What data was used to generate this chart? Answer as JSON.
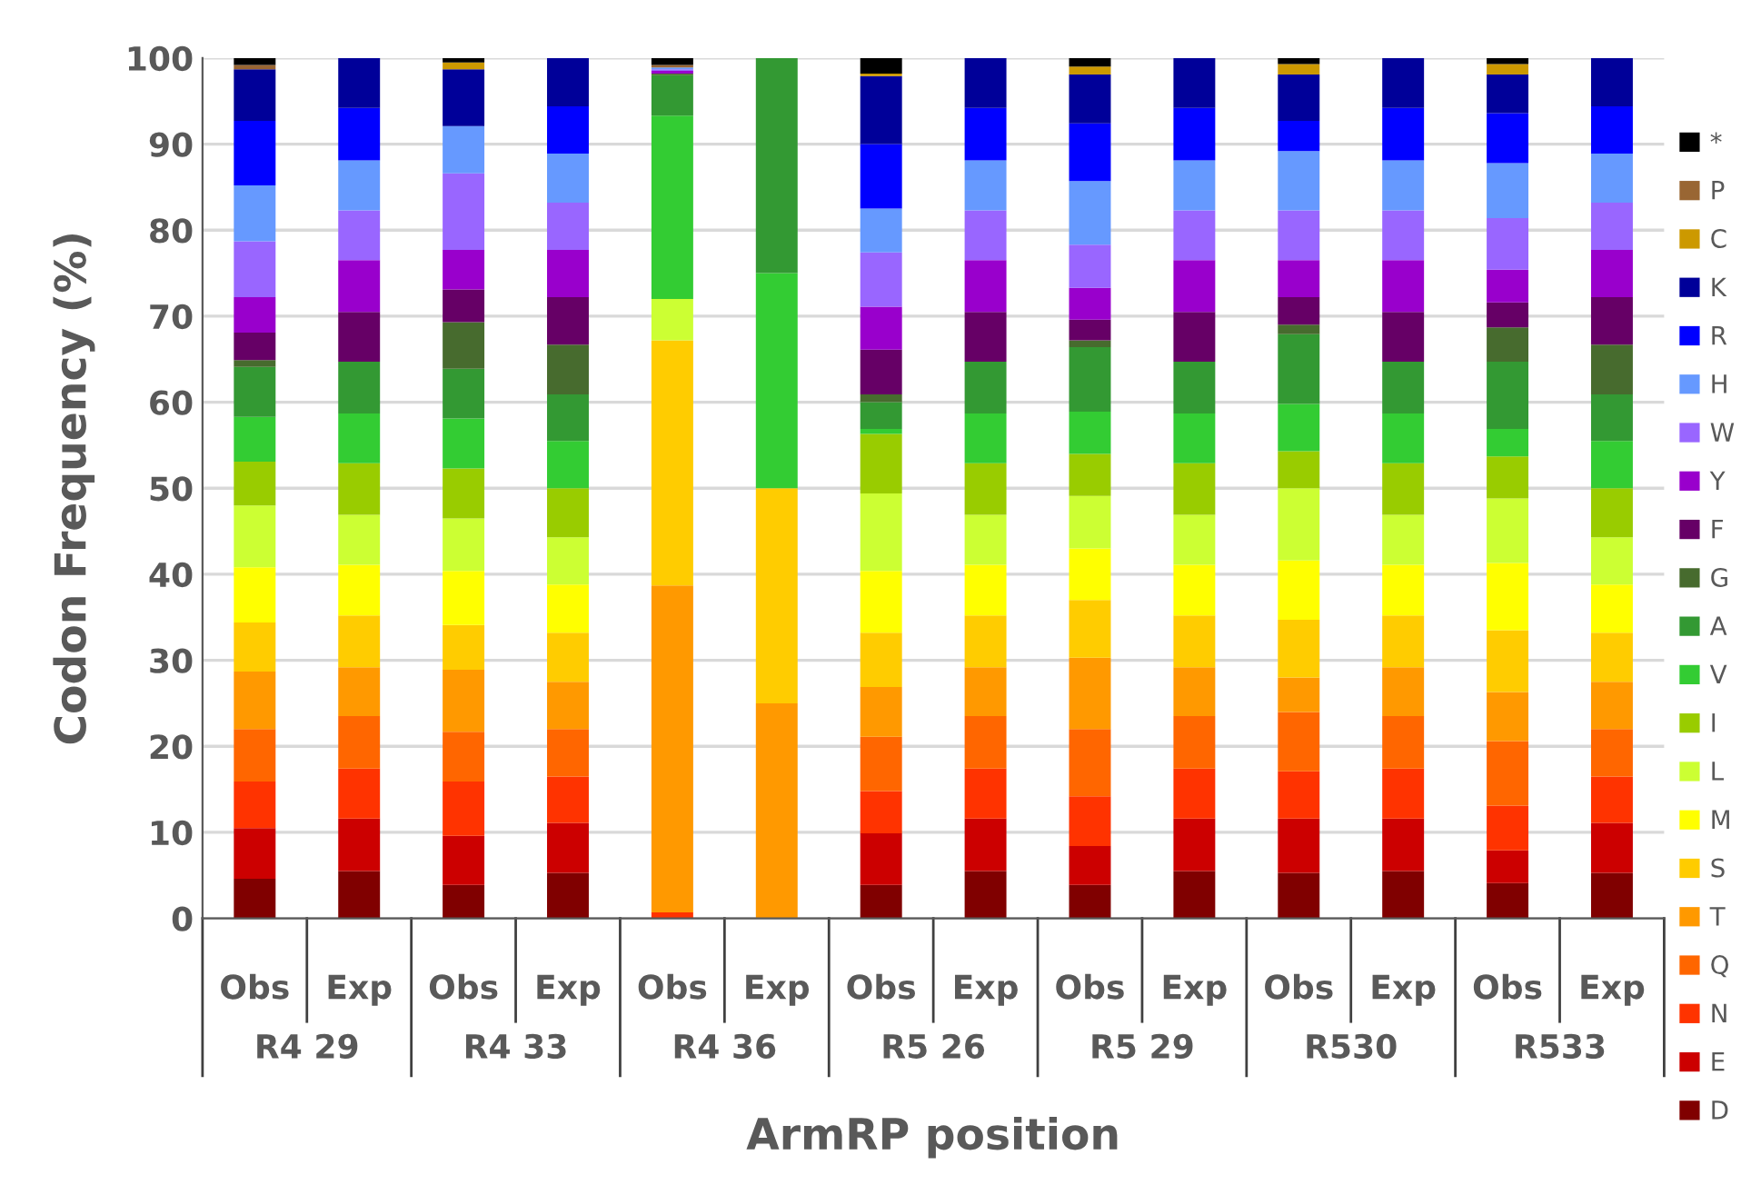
{
  "chart_data": {
    "type": "bar",
    "stacked": true,
    "ylabel": "Codon Frequency (%)",
    "xlabel": "ArmRP position",
    "categories": [
      "Obs",
      "Exp",
      "Obs",
      "Exp",
      "Obs",
      "Exp",
      "Obs",
      "Exp",
      "Obs",
      "Exp",
      "Obs",
      "Exp",
      "Obs",
      "Exp"
    ],
    "annotations": [
      "R4 29",
      "R4 33",
      "R4 36",
      "R5 26",
      "R5 29",
      "R530",
      "R533"
    ],
    "ylim": [
      0,
      100
    ],
    "yticks": [
      0,
      10,
      20,
      30,
      40,
      50,
      60,
      70,
      80,
      90,
      100
    ],
    "grid": "y",
    "legend": "right",
    "series": [
      {
        "name": "D",
        "color": "#800000",
        "values": [
          4.6,
          5.5,
          3.9,
          5.3,
          0,
          0,
          3.9,
          5.5,
          3.9,
          5.5,
          5.3,
          5.5,
          4.1,
          5.3
        ]
      },
      {
        "name": "E",
        "color": "#cc0000",
        "values": [
          5.9,
          6.1,
          5.7,
          5.8,
          0,
          0,
          6.0,
          6.1,
          4.5,
          6.1,
          6.3,
          6.1,
          3.8,
          5.8
        ]
      },
      {
        "name": "N",
        "color": "#ff3300",
        "values": [
          5.4,
          5.8,
          6.3,
          5.4,
          0.7,
          0,
          4.9,
          5.8,
          5.8,
          5.8,
          5.5,
          5.8,
          5.2,
          5.4
        ]
      },
      {
        "name": "Q",
        "color": "#ff6600",
        "values": [
          6.1,
          6.1,
          5.8,
          5.5,
          0,
          0,
          6.3,
          6.1,
          7.8,
          6.1,
          6.9,
          6.1,
          7.5,
          5.5
        ]
      },
      {
        "name": "T",
        "color": "#ff9900",
        "values": [
          6.7,
          5.7,
          7.2,
          5.5,
          38.0,
          25,
          5.8,
          5.7,
          8.3,
          5.7,
          4.0,
          5.7,
          5.7,
          5.5
        ]
      },
      {
        "name": "S",
        "color": "#ffcc00",
        "values": [
          5.7,
          6.0,
          5.2,
          5.7,
          28.5,
          25,
          6.3,
          6.0,
          6.7,
          6.0,
          6.7,
          6.0,
          7.2,
          5.7
        ]
      },
      {
        "name": "M",
        "color": "#ffff00",
        "values": [
          6.4,
          5.9,
          6.3,
          5.6,
          0,
          0,
          7.2,
          5.9,
          6.0,
          5.9,
          6.9,
          5.9,
          7.8,
          5.6
        ]
      },
      {
        "name": "L",
        "color": "#ccff33",
        "values": [
          7.2,
          5.8,
          6.1,
          5.5,
          4.8,
          0,
          9.0,
          5.8,
          6.1,
          5.8,
          8.4,
          5.8,
          7.5,
          5.5
        ]
      },
      {
        "name": "I",
        "color": "#99cc00",
        "values": [
          5.1,
          6.0,
          5.8,
          5.7,
          0,
          0,
          6.9,
          6.0,
          4.9,
          6.0,
          4.3,
          6.0,
          4.9,
          5.7
        ]
      },
      {
        "name": "V",
        "color": "#33cc33",
        "values": [
          5.2,
          5.8,
          5.8,
          5.5,
          21.3,
          25,
          0.6,
          5.8,
          4.9,
          5.8,
          5.5,
          5.8,
          3.2,
          5.5
        ]
      },
      {
        "name": "A",
        "color": "#339933",
        "values": [
          5.8,
          6.0,
          5.8,
          5.4,
          4.7,
          25,
          3.1,
          6.0,
          7.5,
          6.0,
          8.1,
          6.0,
          7.8,
          5.4
        ]
      },
      {
        "name": "G",
        "color": "#476b2e",
        "values": [
          0.8,
          0,
          5.4,
          5.8,
          0.2,
          0,
          0.9,
          0,
          0.8,
          0,
          1.1,
          0,
          4.0,
          5.8
        ]
      },
      {
        "name": "F",
        "color": "#660066",
        "values": [
          3.2,
          5.8,
          3.8,
          5.5,
          0,
          0,
          5.2,
          5.8,
          2.4,
          5.8,
          3.2,
          5.8,
          2.9,
          5.5
        ]
      },
      {
        "name": "Y",
        "color": "#9900cc",
        "values": [
          4.1,
          6.0,
          4.6,
          5.5,
          0.3,
          0,
          5.0,
          6.0,
          3.7,
          6.0,
          4.3,
          6.0,
          3.8,
          5.5
        ]
      },
      {
        "name": "W",
        "color": "#9966ff",
        "values": [
          6.5,
          5.8,
          8.9,
          5.5,
          0.2,
          0,
          6.3,
          5.8,
          5.0,
          5.8,
          5.8,
          5.8,
          6.0,
          5.5
        ]
      },
      {
        "name": "H",
        "color": "#6699ff",
        "values": [
          6.5,
          5.8,
          5.5,
          5.7,
          0.2,
          0,
          5.1,
          5.8,
          7.4,
          5.8,
          6.9,
          5.8,
          6.4,
          5.7
        ]
      },
      {
        "name": "R",
        "color": "#0000ff",
        "values": [
          7.5,
          6.1,
          0,
          5.5,
          0,
          0,
          7.5,
          6.1,
          6.7,
          6.1,
          3.5,
          6.1,
          5.8,
          5.5
        ]
      },
      {
        "name": "K",
        "color": "#000099",
        "values": [
          6.0,
          5.8,
          6.6,
          5.6,
          0,
          0,
          7.9,
          5.8,
          5.7,
          5.8,
          5.4,
          5.8,
          4.5,
          5.6
        ]
      },
      {
        "name": "C",
        "color": "#cc9900",
        "values": [
          0,
          0,
          0.8,
          0,
          0,
          0,
          0.3,
          0,
          0.9,
          0,
          1.2,
          0,
          1.2,
          0
        ]
      },
      {
        "name": "P",
        "color": "#996633",
        "values": [
          0.5,
          0,
          0,
          0,
          0.3,
          0,
          0,
          0,
          0,
          0,
          0,
          0,
          0,
          0
        ]
      },
      {
        "name": "*",
        "color": "#000000",
        "values": [
          0.8,
          0,
          0.5,
          0,
          0.8,
          0,
          1.8,
          0,
          1.0,
          0,
          0.7,
          0,
          0.7,
          0
        ]
      }
    ]
  }
}
